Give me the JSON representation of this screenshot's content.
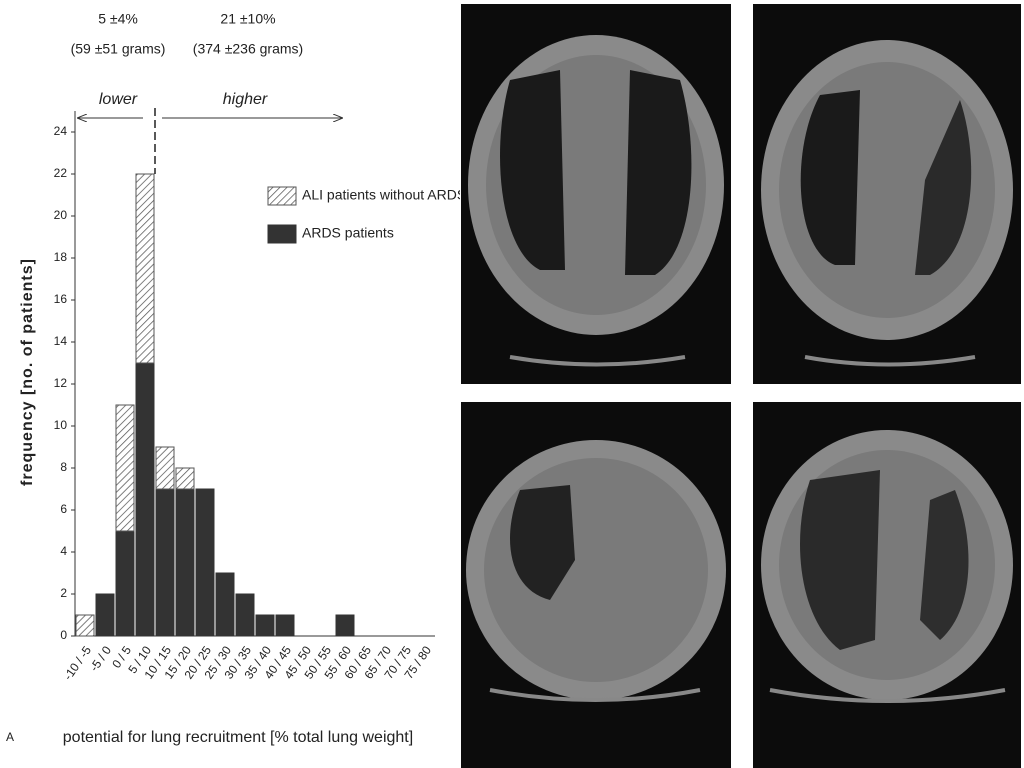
{
  "chart_data": {
    "type": "bar",
    "stacked": true,
    "panel_label": "A",
    "annotations": [
      "5 ±4%",
      "(59 ±51 grams)",
      "21 ±10%",
      "(374 ±236 grams)",
      "lower",
      "higher"
    ],
    "ylabel": "frequency [no. of patients]",
    "xlabel": "potential for lung recruitment [% total lung weight]",
    "categories": [
      "-10 / -5",
      "-5 / 0",
      "0 / 5",
      "5 / 10",
      "10 / 15",
      "15 / 20",
      "20 / 25",
      "25 / 30",
      "30 / 35",
      "35 / 40",
      "40 / 45",
      "45 / 50",
      "50 / 55",
      "55 / 60",
      "60 / 65",
      "65 / 70",
      "70 / 75",
      "75 / 80"
    ],
    "series": [
      {
        "name": "ARDS patients",
        "color": "#333333",
        "hatch": false,
        "values": [
          0,
          2,
          5,
          13,
          7,
          7,
          7,
          3,
          2,
          1,
          1,
          0,
          0,
          1,
          0,
          0,
          0,
          0
        ]
      },
      {
        "name": "ALI patients without ARDS",
        "color": "#555555",
        "hatch": true,
        "values": [
          1,
          0,
          6,
          9,
          2,
          1,
          0,
          0,
          0,
          0,
          0,
          0,
          0,
          0,
          0,
          0,
          0,
          0
        ]
      }
    ],
    "ylim": [
      0,
      25
    ],
    "yticks": [
      0,
      2,
      4,
      6,
      8,
      10,
      12,
      14,
      16,
      18,
      20,
      22,
      24
    ]
  }
}
